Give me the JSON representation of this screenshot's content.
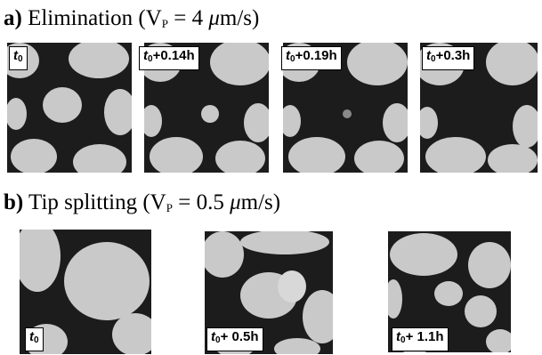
{
  "heading_a": {
    "letter": "a)",
    "text": "Elimination (V",
    "sub": "P",
    "rest1": " = 4 ",
    "mu": "μ",
    "rest2": "m/s)"
  },
  "heading_b": {
    "letter": "b)",
    "text": "Tip splitting (V",
    "sub": "P",
    "rest1": " = 0.5 ",
    "mu": "μ",
    "rest2": "m/s)"
  },
  "row_a": [
    {
      "t": "t",
      "sub": "0",
      "suffix": ""
    },
    {
      "t": "t",
      "sub": "0",
      "suffix": "+0.14h"
    },
    {
      "t": "t",
      "sub": "0",
      "suffix": "+0.19h"
    },
    {
      "t": "t",
      "sub": "0",
      "suffix": "+0.3h"
    }
  ],
  "row_b": [
    {
      "t": "t",
      "sub": "0",
      "suffix": ""
    },
    {
      "t": "t",
      "sub": "0",
      "suffix": "+ 0.5h"
    },
    {
      "t": "t",
      "sub": "0",
      "suffix": "+ 1.1h"
    }
  ],
  "colors": {
    "background_phase": "#1c1c1c",
    "cell": "#c9c9c9"
  }
}
